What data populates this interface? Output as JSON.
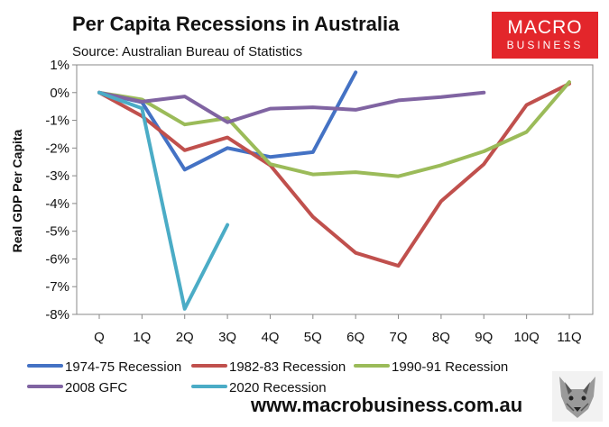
{
  "title": "Per Capita Recessions in Australia",
  "subtitle": "Source: Australian Bureau of Statistics",
  "logo": {
    "line1": "MACRO",
    "line2": "BUSINESS"
  },
  "footer": "www.macrobusiness.com.au",
  "colors": {
    "accent": "#e3262b"
  },
  "chart_data": {
    "type": "line",
    "title": "Per Capita Recessions in Australia",
    "ylabel": "Real GDP Per Capita",
    "xlabel": "",
    "categories": [
      "Q",
      "1Q",
      "2Q",
      "3Q",
      "4Q",
      "5Q",
      "6Q",
      "7Q",
      "8Q",
      "9Q",
      "10Q",
      "11Q"
    ],
    "ylim": [
      -8,
      1
    ],
    "yticks": [
      1,
      0,
      -1,
      -2,
      -3,
      -4,
      -5,
      -6,
      -7,
      -8
    ],
    "ytick_labels": [
      "1%",
      "0%",
      "-1%",
      "-2%",
      "-3%",
      "-4%",
      "-5%",
      "-6%",
      "-7%",
      "-8%"
    ],
    "legend_position": "bottom",
    "series": [
      {
        "name": "1974-75 Recession",
        "color": "#4472c4",
        "values": [
          0,
          -0.35,
          -2.78,
          -2.0,
          -2.32,
          -2.15,
          0.73,
          null,
          null,
          null,
          null,
          null
        ]
      },
      {
        "name": "1982-83 Recession",
        "color": "#c0504d",
        "values": [
          0,
          -0.85,
          -2.08,
          -1.62,
          -2.62,
          -4.48,
          -5.78,
          -6.25,
          -3.92,
          -2.58,
          -0.45,
          0.32
        ]
      },
      {
        "name": "1990-91 Recession",
        "color": "#9bbb59",
        "values": [
          0,
          -0.25,
          -1.15,
          -0.92,
          -2.58,
          -2.95,
          -2.87,
          -3.02,
          -2.62,
          -2.12,
          -1.42,
          0.38
        ]
      },
      {
        "name": "2008 GFC",
        "color": "#8064a2",
        "values": [
          0,
          -0.33,
          -0.14,
          -1.07,
          -0.58,
          -0.53,
          -0.62,
          -0.28,
          -0.16,
          0.0,
          null,
          null
        ]
      },
      {
        "name": "2020 Recession",
        "color": "#4bacc6",
        "values": [
          0,
          -0.57,
          -7.8,
          -4.77,
          null,
          null,
          null,
          null,
          null,
          null,
          null,
          null
        ]
      }
    ]
  }
}
